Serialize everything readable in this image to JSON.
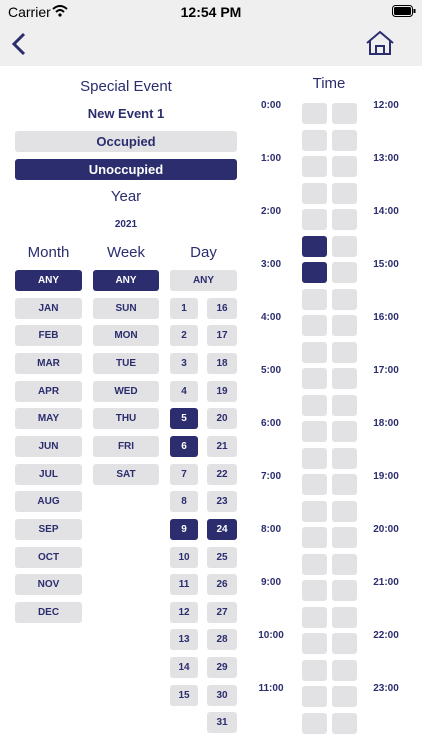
{
  "status_bar": {
    "carrier": "Carrier",
    "time": "12:54 PM"
  },
  "event": {
    "title": "Special Event",
    "name": "New Event 1",
    "modes": [
      "Occupied",
      "Unoccupied"
    ],
    "selected_mode": 1,
    "year_label": "Year",
    "year": "2021"
  },
  "month": {
    "label": "Month",
    "options": [
      "ANY",
      "JAN",
      "FEB",
      "MAR",
      "APR",
      "MAY",
      "JUN",
      "JUL",
      "AUG",
      "SEP",
      "OCT",
      "NOV",
      "DEC"
    ],
    "selected": [
      0
    ]
  },
  "week": {
    "label": "Week",
    "options": [
      "ANY",
      "SUN",
      "MON",
      "TUE",
      "WED",
      "THU",
      "FRI",
      "SAT"
    ],
    "selected": [
      0
    ]
  },
  "day": {
    "label": "Day",
    "options": [
      "ANY",
      "1",
      "2",
      "3",
      "4",
      "5",
      "6",
      "7",
      "8",
      "9",
      "10",
      "11",
      "12",
      "13",
      "14",
      "15",
      "16",
      "17",
      "18",
      "19",
      "20",
      "21",
      "22",
      "23",
      "24",
      "25",
      "26",
      "27",
      "28",
      "29",
      "30",
      "31"
    ],
    "selected": [
      5,
      6,
      9,
      24
    ]
  },
  "time": {
    "label": "Time",
    "hours": [
      "0:00",
      "1:00",
      "2:00",
      "3:00",
      "4:00",
      "5:00",
      "6:00",
      "7:00",
      "8:00",
      "9:00",
      "10:00",
      "11:00",
      "12:00",
      "13:00",
      "14:00",
      "15:00",
      "16:00",
      "17:00",
      "18:00",
      "19:00",
      "20:00",
      "21:00",
      "22:00",
      "23:00"
    ],
    "selected_slots": [
      5,
      6
    ]
  }
}
